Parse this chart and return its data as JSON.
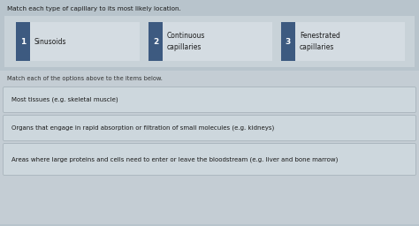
{
  "title": "Match each type of capillary to its most likely location.",
  "subtitle": "Match each of the options above to the items below.",
  "bg_color": "#b8c4cc",
  "top_section_bg": "#c8d2d8",
  "bottom_section_bg": "#c4cdd4",
  "card_bg": "#d4dce2",
  "item_box_bg": "#cdd7dd",
  "item_box_border": "#a8b4bc",
  "num_box_color": "#3d5a80",
  "white": "#ffffff",
  "text_dark": "#1a1a1a",
  "text_mid": "#333333",
  "options": [
    {
      "num": "1",
      "label": "Sinusoids"
    },
    {
      "num": "2",
      "label": "Continuous\ncapillaries"
    },
    {
      "num": "3",
      "label": "Fenestrated\ncapillaries"
    }
  ],
  "items": [
    "Most tissues (e.g. skeletal muscle)",
    "Organs that engage in rapid absorption or filtration of small molecules (e.g. kidneys)",
    "Areas where large proteins and cells need to enter or leave the bloodstream (e.g. liver and bone marrow)"
  ],
  "fig_width": 4.74,
  "fig_height": 2.56,
  "dpi": 100
}
